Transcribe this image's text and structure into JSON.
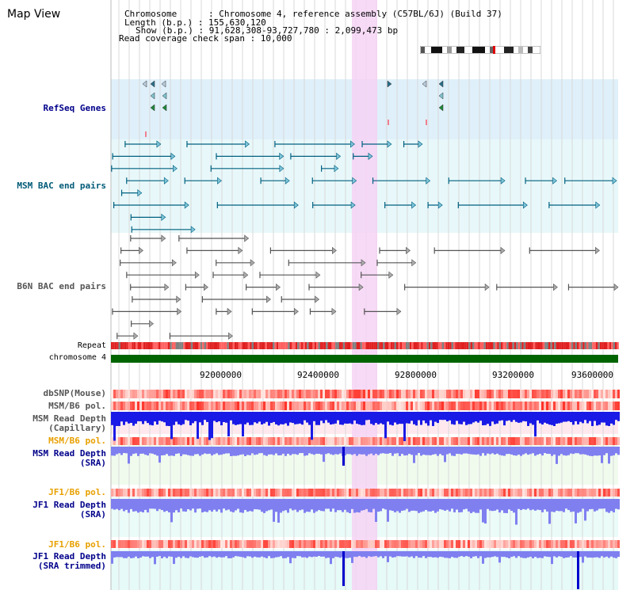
{
  "header": {
    "title": "Map View",
    "info_lines": [
      "Chromosome      : Chromosome 4, reference assembly (C57BL/6J) (Build 37)",
      "Length (b.p.) : 155,630,120",
      "Show (b.p.) : 91,628,308-93,727,780 : 2,099,473 bp",
      "Read coverage check span : 10,000"
    ]
  },
  "tracks": {
    "refseq": "RefSeq Genes",
    "msm_bac": "MSM BAC end pairs",
    "b6n_bac": "B6N BAC end pairs",
    "repeat": "Repeat",
    "chromosome": "chromosome 4",
    "dbsnp": "dbSNP(Mouse)",
    "msm_b6_pol": "MSM/B6 pol.",
    "msm_depth_cap_1": "MSM Read Depth",
    "msm_depth_cap_2": "(Capillary)",
    "msm_b6_pol_2": "MSM/B6 pol.",
    "msm_depth_sra_1": "MSM Read Depth",
    "msm_depth_sra_2": "(SRA)",
    "jf1_b6_pol": "JF1/B6 pol.",
    "jf1_depth_1": "JF1 Read Depth",
    "jf1_depth_2": "(SRA)",
    "jf1_b6_pol_2": "JF1/B6 pol.",
    "jf1_trim_1": "JF1 Read Depth",
    "jf1_trim_2": "(SRA trimmed)"
  },
  "axis": {
    "ticks": [
      "92000000",
      "92400000",
      "92800000",
      "93200000",
      "93600000"
    ]
  },
  "colors": {
    "label_blue": "#00008b",
    "label_teal": "#005a78",
    "label_gray": "#555555",
    "label_orange": "#e8a000",
    "highlight": "#f6d3f4",
    "chromosome_bar": "#006400",
    "depth_blue": "#1a1ae6",
    "depth_light": "#7f7ff0"
  }
}
